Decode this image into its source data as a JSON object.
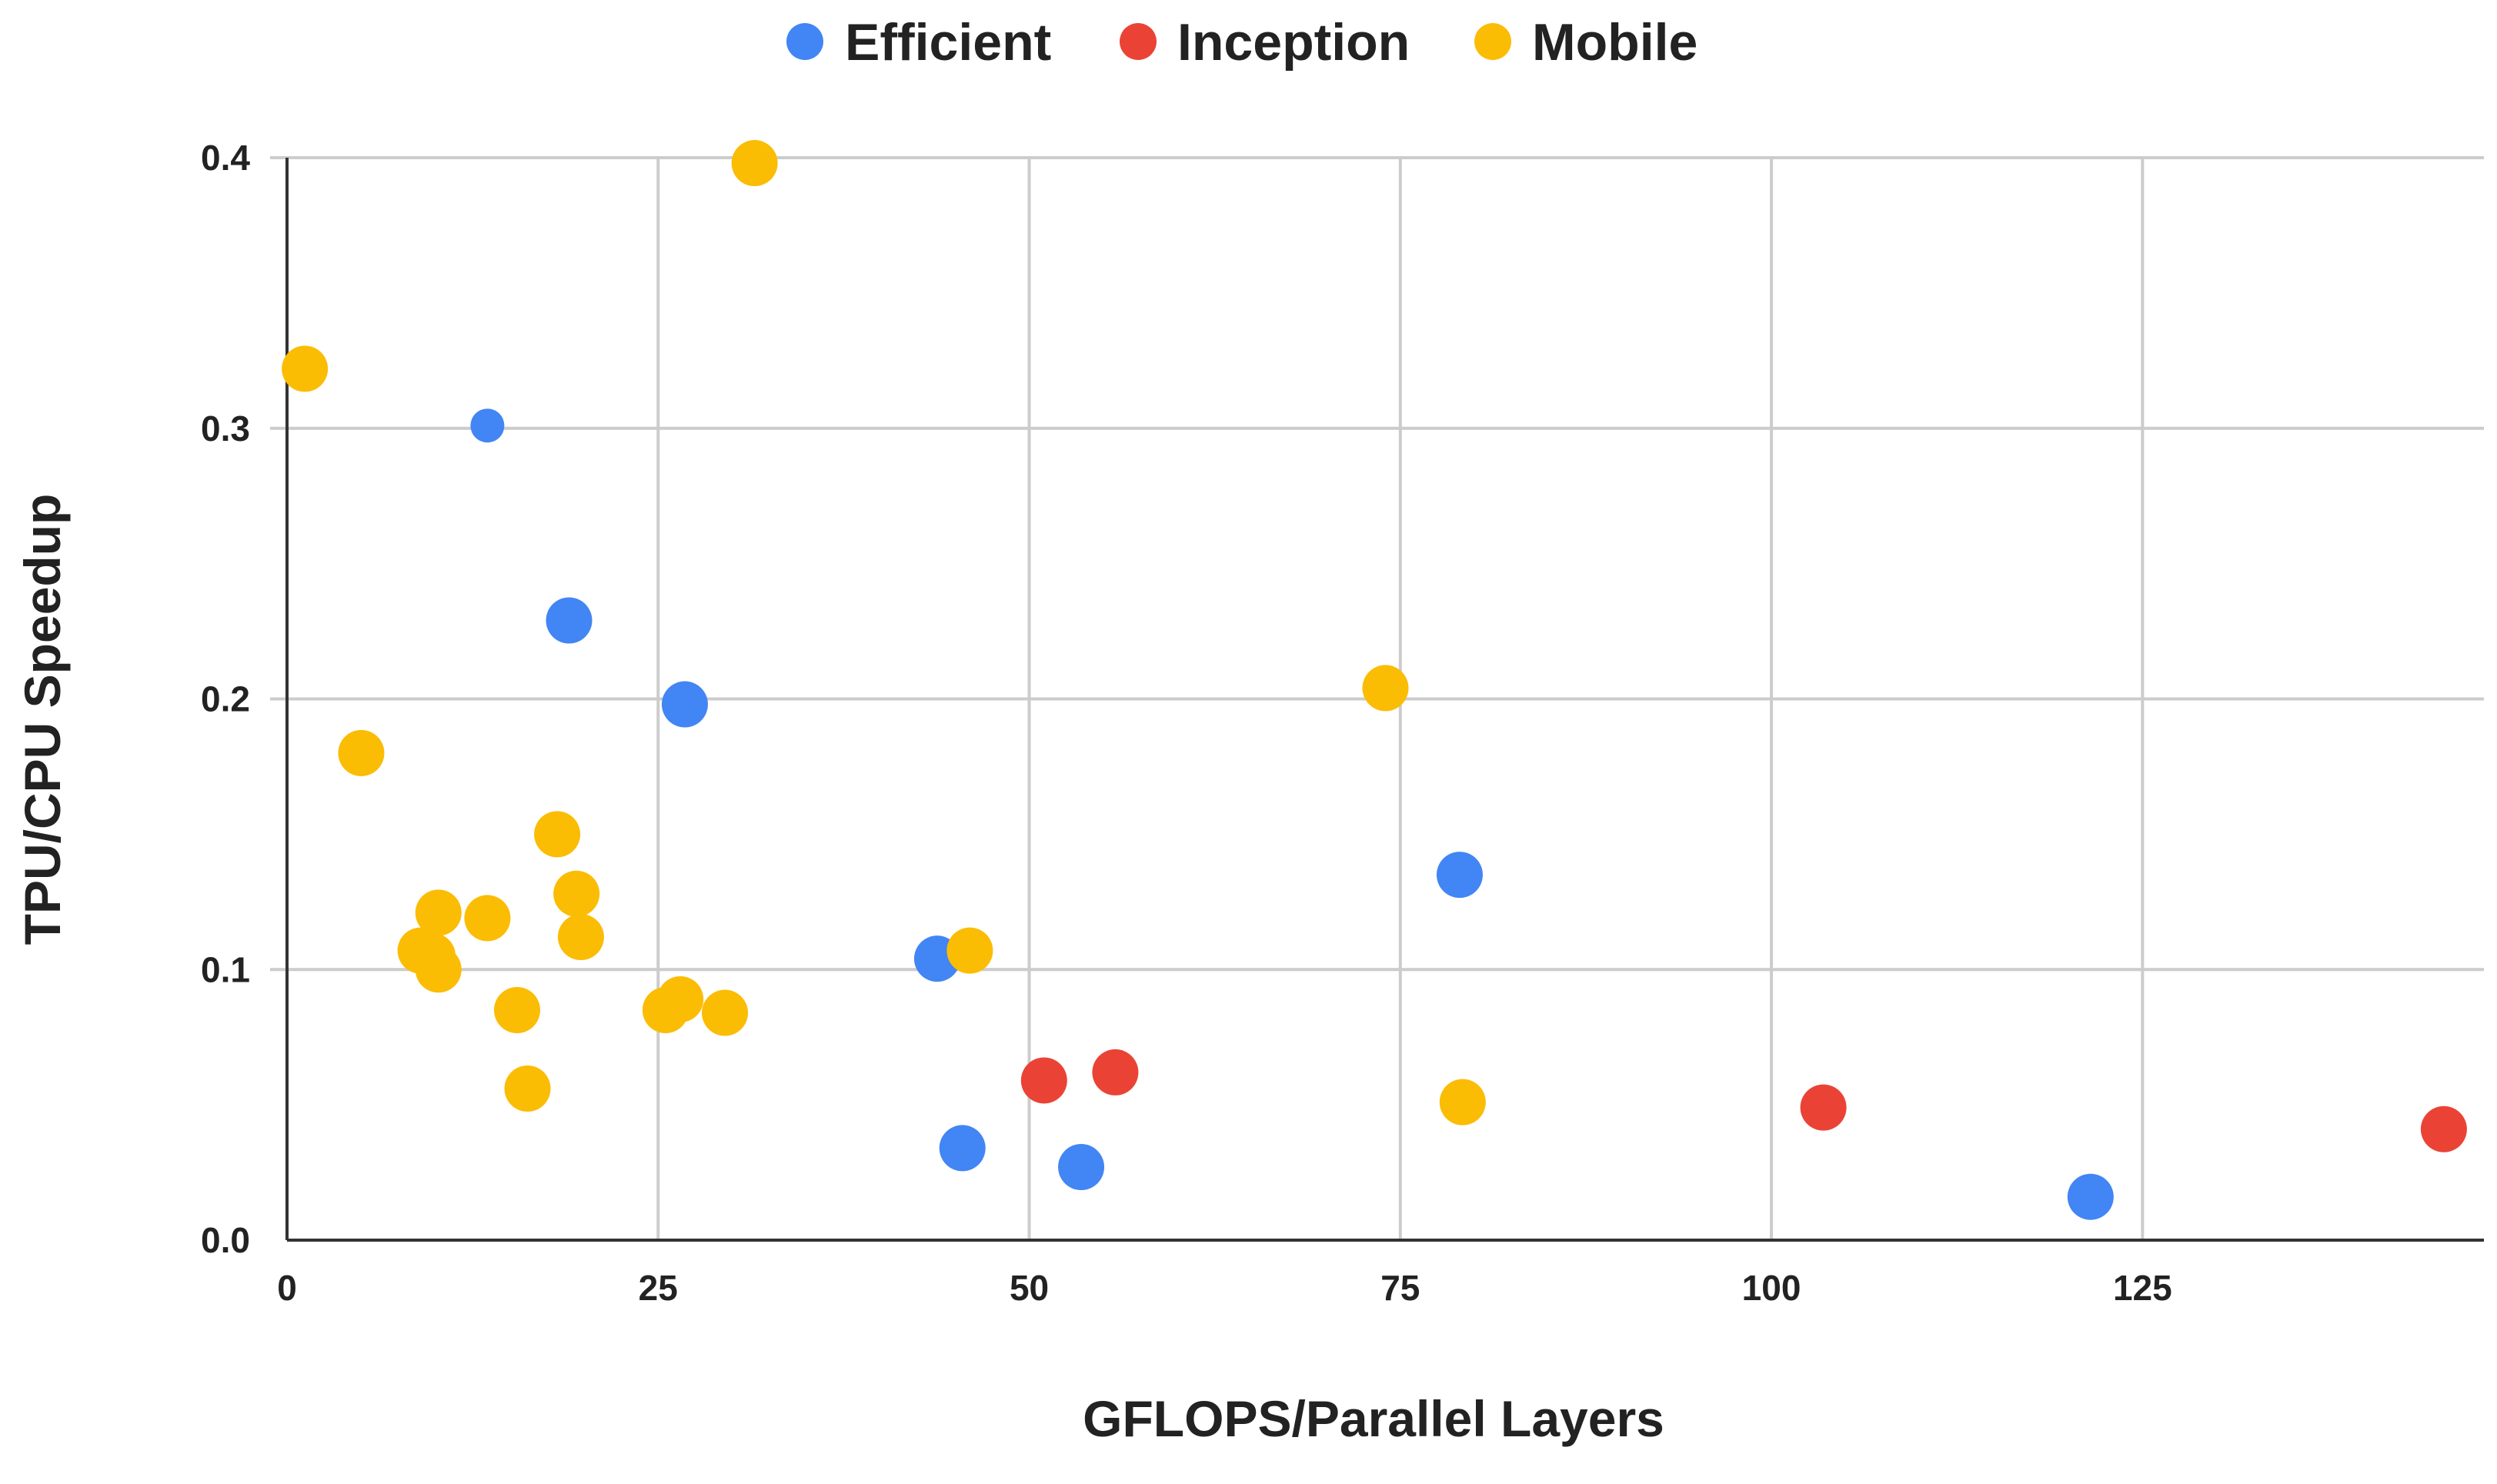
{
  "chart_data": {
    "type": "scatter",
    "title": "",
    "xlabel": "GFLOPS/Parallel Layers",
    "ylabel": "TPU/CPU Speedup",
    "xlim": [
      0,
      148
    ],
    "ylim": [
      0,
      0.4
    ],
    "x_ticks": [
      0,
      25,
      50,
      75,
      100,
      125
    ],
    "x_tick_labels": [
      "0",
      "25",
      "50",
      "75",
      "100",
      "125"
    ],
    "y_ticks": [
      0,
      0.1,
      0.2,
      0.3,
      0.4
    ],
    "y_tick_labels": [
      "0.0",
      "0.1",
      "0.2",
      "0.3",
      "0.4"
    ],
    "grid": true,
    "legend_position": "top-center",
    "series": [
      {
        "name": "Efficient",
        "color": "#4285F4",
        "points": [
          {
            "x": 13.5,
            "y": 0.301,
            "size": "small"
          },
          {
            "x": 19.0,
            "y": 0.229,
            "size": "large"
          },
          {
            "x": 26.8,
            "y": 0.198,
            "size": "large"
          },
          {
            "x": 43.8,
            "y": 0.104,
            "size": "large"
          },
          {
            "x": 45.5,
            "y": 0.034,
            "size": "large"
          },
          {
            "x": 53.5,
            "y": 0.027,
            "size": "large"
          },
          {
            "x": 79.0,
            "y": 0.135,
            "size": "large"
          },
          {
            "x": 121.5,
            "y": 0.016,
            "size": "large"
          }
        ]
      },
      {
        "name": "Inception",
        "color": "#EA4335",
        "points": [
          {
            "x": 51.0,
            "y": 0.059,
            "size": "large"
          },
          {
            "x": 55.8,
            "y": 0.062,
            "size": "large"
          },
          {
            "x": 103.5,
            "y": 0.049,
            "size": "large"
          },
          {
            "x": 145.3,
            "y": 0.041,
            "size": "large"
          }
        ]
      },
      {
        "name": "Mobile",
        "color": "#FBBC04",
        "points": [
          {
            "x": 31.5,
            "y": 0.398,
            "size": "large"
          },
          {
            "x": 1.2,
            "y": 0.322,
            "size": "large"
          },
          {
            "x": 5.0,
            "y": 0.18,
            "size": "large"
          },
          {
            "x": 74.0,
            "y": 0.204,
            "size": "large"
          },
          {
            "x": 18.2,
            "y": 0.15,
            "size": "large"
          },
          {
            "x": 19.5,
            "y": 0.128,
            "size": "large"
          },
          {
            "x": 19.8,
            "y": 0.112,
            "size": "large"
          },
          {
            "x": 10.2,
            "y": 0.121,
            "size": "large"
          },
          {
            "x": 13.5,
            "y": 0.119,
            "size": "large"
          },
          {
            "x": 9.0,
            "y": 0.107,
            "size": "large"
          },
          {
            "x": 9.8,
            "y": 0.105,
            "size": "large"
          },
          {
            "x": 10.2,
            "y": 0.1,
            "size": "large"
          },
          {
            "x": 15.5,
            "y": 0.085,
            "size": "large"
          },
          {
            "x": 16.2,
            "y": 0.056,
            "size": "large"
          },
          {
            "x": 25.5,
            "y": 0.085,
            "size": "large"
          },
          {
            "x": 26.5,
            "y": 0.089,
            "size": "large"
          },
          {
            "x": 29.5,
            "y": 0.084,
            "size": "large"
          },
          {
            "x": 46.0,
            "y": 0.107,
            "size": "large"
          },
          {
            "x": 79.2,
            "y": 0.051,
            "size": "large"
          }
        ]
      }
    ]
  }
}
